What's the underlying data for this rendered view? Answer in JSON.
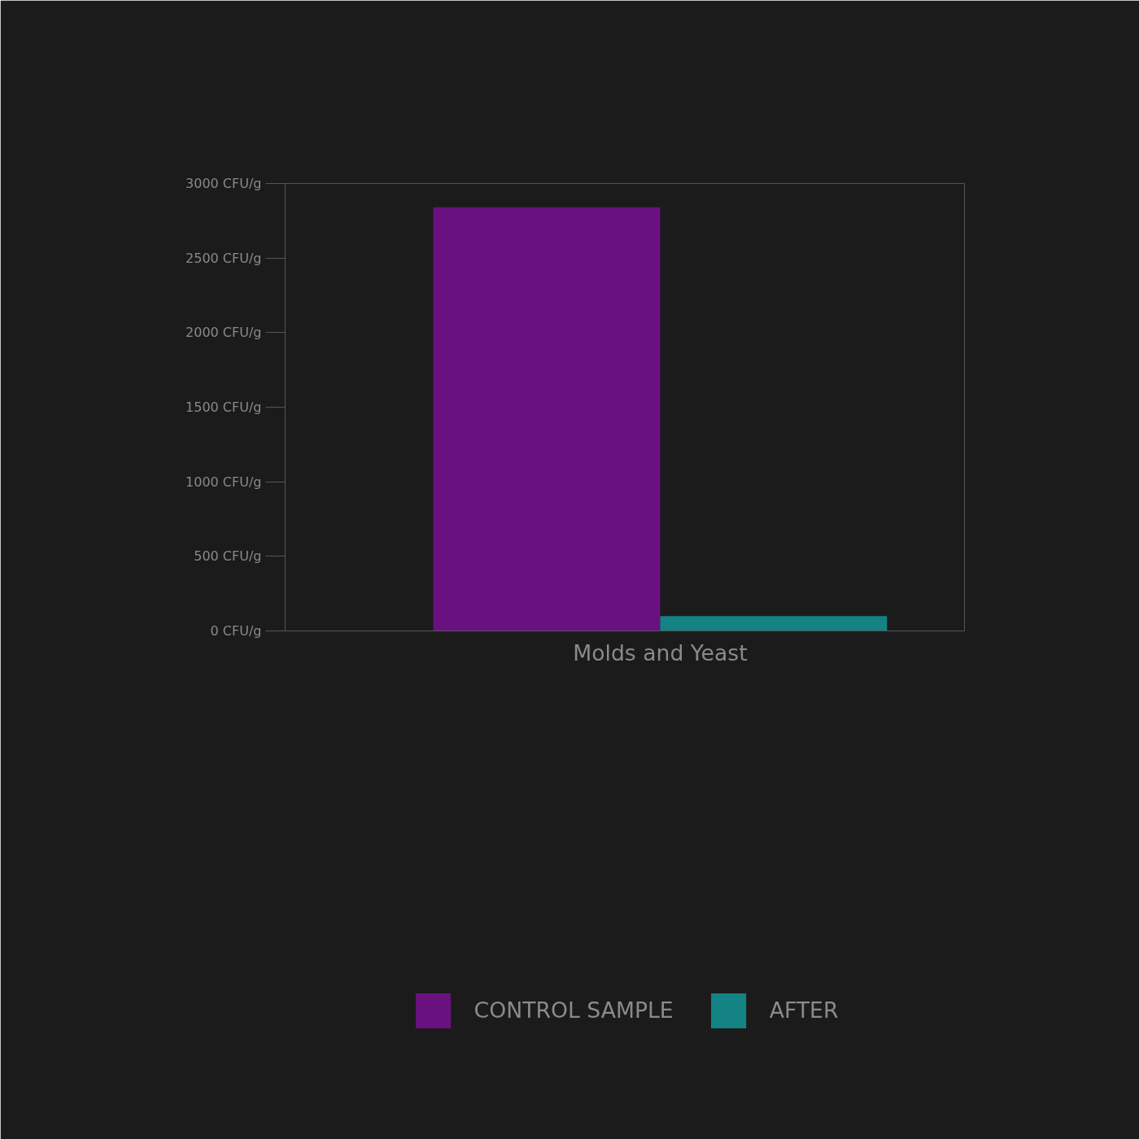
{
  "chart_data": {
    "type": "bar",
    "categories": [
      "Molds and Yeast"
    ],
    "series": [
      {
        "name": "CONTROL SAMPLE",
        "color": "#6a1180",
        "values": [
          2840
        ]
      },
      {
        "name": "AFTER",
        "color": "#138383",
        "values": [
          100
        ]
      }
    ],
    "ylim": [
      0,
      3000
    ],
    "yticks": [
      {
        "value": 0,
        "label": "0 CFU/g"
      },
      {
        "value": 500,
        "label": "500 CFU/g"
      },
      {
        "value": 1000,
        "label": "1000 CFU/g"
      },
      {
        "value": 1500,
        "label": "1500 CFU/g"
      },
      {
        "value": 2000,
        "label": "2000 CFU/g"
      },
      {
        "value": 2500,
        "label": "2500 CFU/g"
      },
      {
        "value": 3000,
        "label": "3000 CFU/g"
      }
    ],
    "grid": false,
    "legend": "bottom"
  }
}
